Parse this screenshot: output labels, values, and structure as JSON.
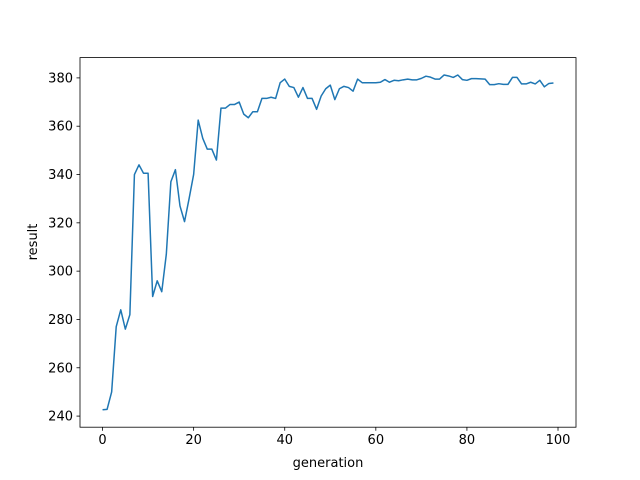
{
  "chart_data": {
    "type": "line",
    "xlabel": "generation",
    "ylabel": "result",
    "x": [
      0,
      1,
      2,
      3,
      4,
      5,
      6,
      7,
      8,
      9,
      10,
      11,
      12,
      13,
      14,
      15,
      16,
      17,
      18,
      19,
      20,
      21,
      22,
      23,
      24,
      25,
      26,
      27,
      28,
      29,
      30,
      31,
      32,
      33,
      34,
      35,
      36,
      37,
      38,
      39,
      40,
      41,
      42,
      43,
      44,
      45,
      46,
      47,
      48,
      49,
      50,
      51,
      52,
      53,
      54,
      55,
      56,
      57,
      58,
      59,
      60,
      61,
      62,
      63,
      64,
      65,
      66,
      67,
      68,
      69,
      70,
      71,
      72,
      73,
      74,
      75,
      76,
      77,
      78,
      79,
      80,
      81,
      82,
      83,
      84,
      85,
      86,
      87,
      88,
      89,
      90,
      91,
      92,
      93,
      94,
      95,
      96,
      97,
      98,
      99
    ],
    "series": [
      {
        "color": "#1f77b4",
        "values": [
          242.6,
          242.8,
          250,
          277,
          284,
          276,
          282,
          340,
          344,
          340.5,
          340.5,
          289.5,
          296,
          291.5,
          307,
          337,
          342,
          327,
          320.5,
          330,
          340,
          362.5,
          355,
          350.5,
          350.5,
          346,
          367.5,
          367.5,
          369,
          369,
          370,
          365,
          363.5,
          366,
          366,
          371.5,
          371.5,
          372,
          371.5,
          378,
          379.5,
          376.5,
          376,
          372,
          376,
          371.5,
          371.5,
          367,
          372.5,
          375.5,
          377,
          371,
          375.5,
          376.5,
          376,
          374.5,
          379.5,
          378,
          378,
          378,
          378,
          378.2,
          379.3,
          378.2,
          379,
          378.8,
          379.2,
          379.5,
          379.2,
          379.2,
          379.8,
          380.7,
          380.3,
          379.5,
          379.5,
          381.2,
          380.8,
          380.2,
          381.2,
          379.3,
          379,
          379.7,
          379.7,
          379.6,
          379.5,
          377.2,
          377.2,
          377.6,
          377.3,
          377.3,
          380.2,
          380.2,
          377.5,
          377.5,
          378.2,
          377.5,
          379,
          376.3,
          377.7,
          377.9
        ]
      }
    ],
    "xlim": [
      -4.95,
      103.95
    ],
    "xticks": [
      0,
      20,
      40,
      60,
      80,
      100
    ],
    "ylim": [
      235.4,
      388.4
    ],
    "yticks": [
      240,
      260,
      280,
      300,
      320,
      340,
      360,
      380
    ]
  }
}
